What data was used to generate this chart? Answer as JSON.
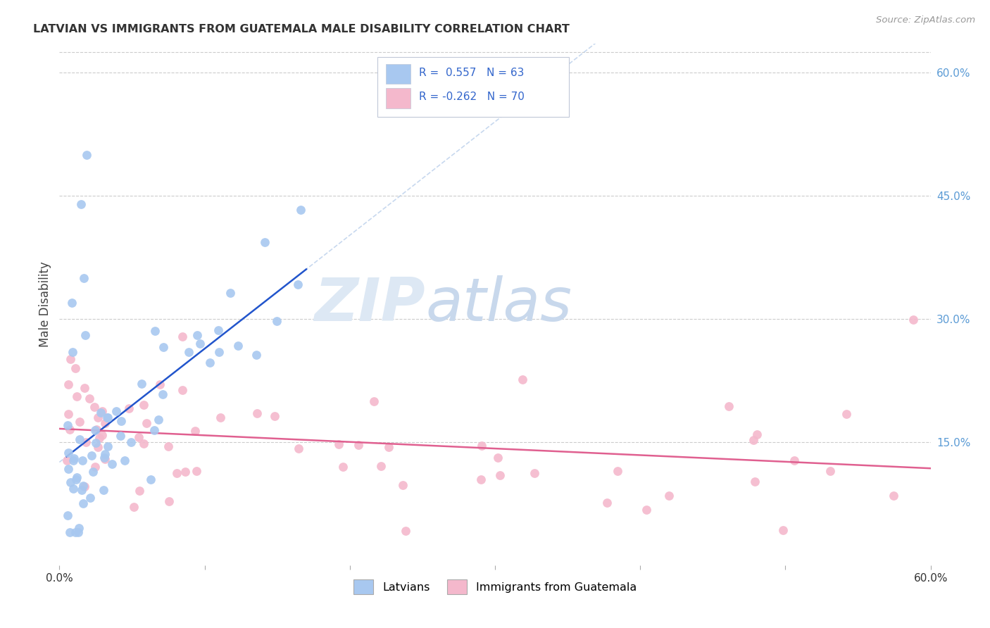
{
  "title": "LATVIAN VS IMMIGRANTS FROM GUATEMALA MALE DISABILITY CORRELATION CHART",
  "source": "Source: ZipAtlas.com",
  "ylabel": "Male Disability",
  "right_yticks": [
    0.15,
    0.3,
    0.45,
    0.6
  ],
  "right_ytick_labels": [
    "15.0%",
    "30.0%",
    "45.0%",
    "60.0%"
  ],
  "xmin": 0.0,
  "xmax": 0.6,
  "ymin": 0.0,
  "ymax": 0.635,
  "color_latvian": "#a8c8f0",
  "color_guatemala": "#f4b8cc",
  "color_latvian_line": "#2255cc",
  "color_guatemala_line": "#e06090",
  "color_dashed_ext": "#b0c8e8",
  "watermark_zip": "ZIP",
  "watermark_atlas": "atlas",
  "background_color": "#ffffff",
  "grid_color": "#cccccc",
  "title_color": "#333333",
  "legend_box_color": "#e8f0f8",
  "legend_border_color": "#c0c8d8"
}
